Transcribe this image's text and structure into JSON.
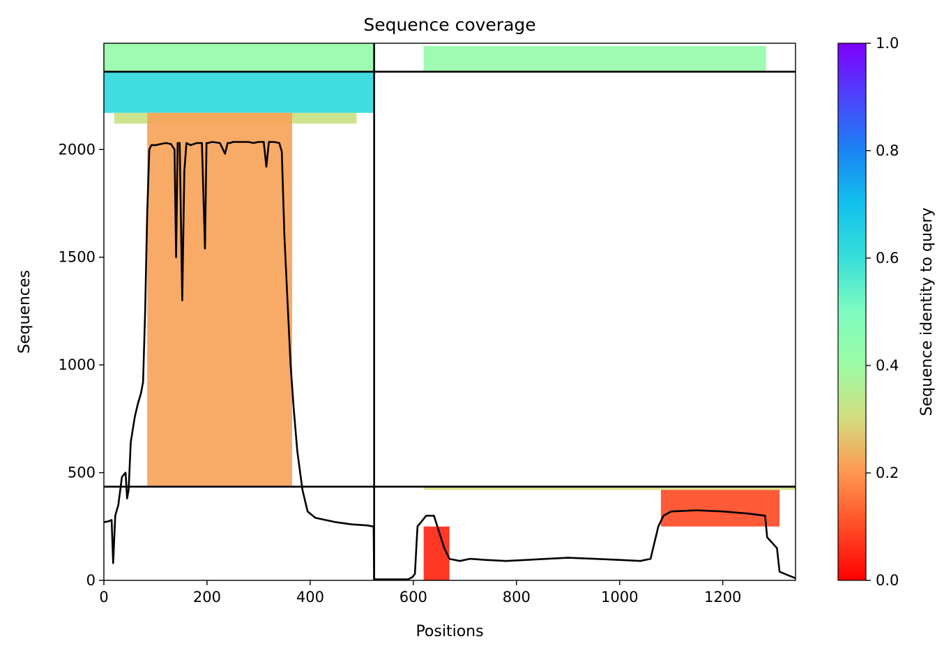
{
  "chart_data": {
    "type": "heatmap",
    "title": "Sequence coverage",
    "xlabel": "Positions",
    "ylabel": "Sequences",
    "xlim": [
      0,
      1341
    ],
    "ylim": [
      0,
      2493
    ],
    "x_ticks": [
      0,
      200,
      400,
      600,
      800,
      1000,
      1200
    ],
    "y_ticks": [
      0,
      500,
      1000,
      1500,
      2000
    ],
    "grid": false,
    "colorbar": {
      "label": "Sequence identity to query",
      "range": [
        0,
        1
      ],
      "ticks": [
        0.0,
        0.2,
        0.4,
        0.6,
        0.8,
        1.0
      ],
      "tick_labels": [
        "0.0",
        "0.2",
        "0.4",
        "0.6",
        "0.8",
        "1.0"
      ],
      "colormap": "rainbow_r"
    },
    "dividers": {
      "x": [
        524
      ],
      "y": [
        435,
        2361
      ]
    },
    "coverage_blocks": [
      {
        "x": [
          0,
          524
        ],
        "y": [
          2361,
          2493
        ],
        "identity": 0.42,
        "label": "top-left"
      },
      {
        "x": [
          0,
          524
        ],
        "y": [
          2170,
          2361
        ],
        "identity": 0.62,
        "label": "upper-left teal"
      },
      {
        "x": [
          20,
          490
        ],
        "y": [
          2120,
          2170
        ],
        "identity": 0.32,
        "label": "upper-left transition"
      },
      {
        "x": [
          84,
          365
        ],
        "y": [
          435,
          2170
        ],
        "identity": 0.22,
        "label": "main left block"
      },
      {
        "x": [
          620,
          1284
        ],
        "y": [
          2361,
          2480
        ],
        "identity": 0.42,
        "label": "top-right"
      },
      {
        "x": [
          620,
          1341
        ],
        "y": [
          420,
          435
        ],
        "identity": 0.3,
        "label": "lower-right strip"
      },
      {
        "x": [
          1080,
          1310
        ],
        "y": [
          250,
          420
        ],
        "identity": 0.1,
        "label": "lower-right block"
      },
      {
        "x": [
          620,
          670
        ],
        "y": [
          0,
          250
        ],
        "identity": 0.05,
        "label": "lower-middle block"
      }
    ],
    "series": [
      {
        "type": "line",
        "color": "#000000",
        "x": [
          0,
          10,
          15,
          18,
          22,
          28,
          35,
          42,
          45,
          48,
          52,
          56,
          60,
          66,
          72,
          76,
          80,
          84,
          88,
          92,
          100,
          110,
          120,
          130,
          137,
          140,
          143,
          147,
          152,
          156,
          160,
          168,
          180,
          190,
          196,
          199,
          202,
          210,
          225,
          235,
          240,
          245,
          250,
          265,
          280,
          290,
          300,
          310,
          315,
          320,
          330,
          340,
          345,
          350,
          356,
          362,
          368,
          375,
          385,
          395,
          410,
          430,
          450,
          480,
          510,
          523,
          524,
          530,
          560,
          590,
          598,
          603,
          608,
          625,
          640,
          660,
          670,
          690,
          710,
          740,
          780,
          820,
          860,
          900,
          950,
          1000,
          1040,
          1060,
          1075,
          1085,
          1100,
          1150,
          1200,
          1250,
          1282,
          1286,
          1305,
          1310,
          1320,
          1341
        ],
        "y": [
          270,
          275,
          280,
          80,
          300,
          350,
          480,
          500,
          380,
          420,
          640,
          700,
          760,
          820,
          870,
          920,
          1250,
          1700,
          2000,
          2020,
          2020,
          2025,
          2030,
          2025,
          2000,
          1500,
          2030,
          2030,
          1300,
          1900,
          2030,
          2020,
          2030,
          2030,
          1540,
          2030,
          2030,
          2035,
          2030,
          1980,
          2030,
          2030,
          2035,
          2035,
          2035,
          2030,
          2035,
          2035,
          1920,
          2035,
          2035,
          2030,
          1990,
          1600,
          1300,
          1000,
          800,
          600,
          420,
          320,
          290,
          280,
          270,
          260,
          255,
          250,
          5,
          5,
          5,
          5,
          15,
          30,
          250,
          300,
          300,
          150,
          100,
          90,
          100,
          95,
          90,
          95,
          100,
          105,
          100,
          95,
          90,
          100,
          250,
          300,
          320,
          325,
          320,
          310,
          300,
          200,
          150,
          40,
          30,
          10
        ]
      }
    ]
  }
}
